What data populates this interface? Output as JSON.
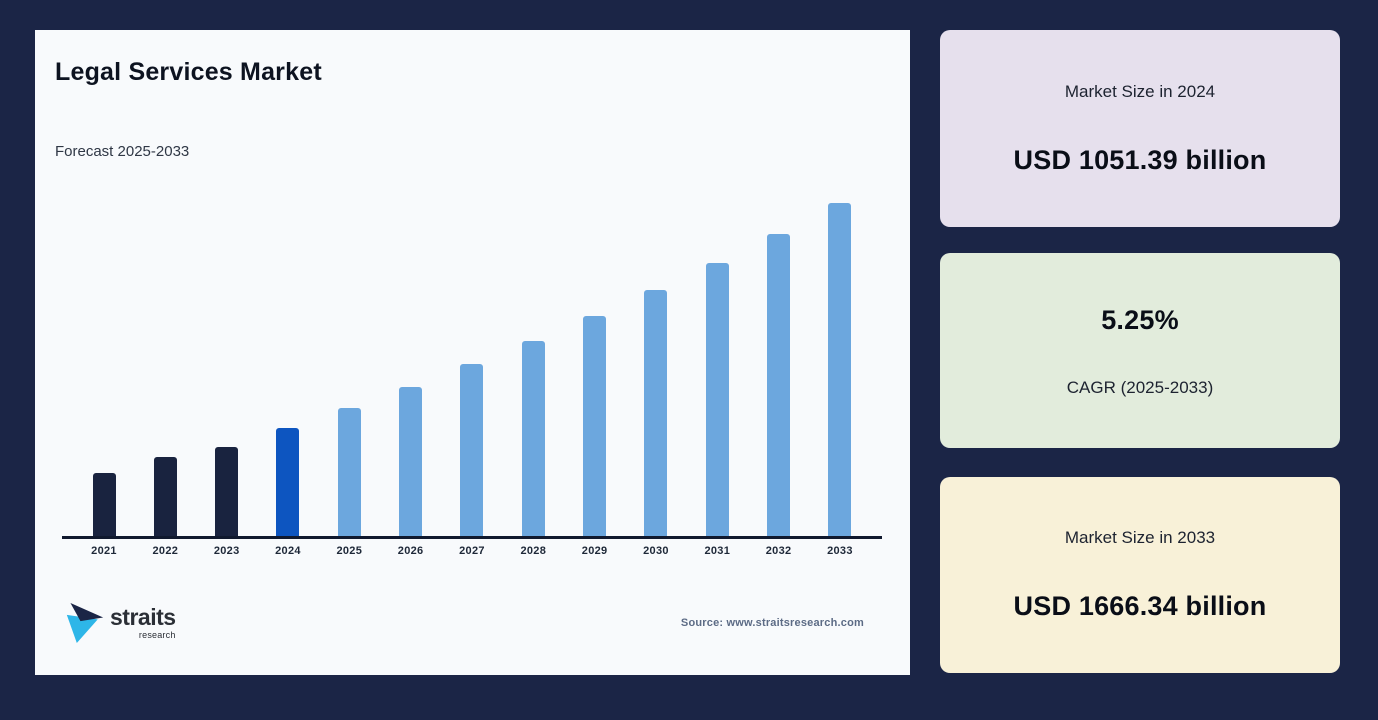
{
  "canvas": {
    "background": "#1b2546",
    "panel_background": "#f8fafc"
  },
  "header": {
    "title": "Legal Services Market",
    "subtitle": "Forecast 2025-2033"
  },
  "footer": {
    "logo_text": "straits",
    "logo_subtext": "research",
    "logo_colors": {
      "dark": "#1b2546",
      "cyan": "#2eb6e8"
    },
    "source": "Source: www.straitsresearch.com"
  },
  "chart_data": {
    "type": "bar",
    "title": "Legal Services Market",
    "subtitle": "Forecast 2025-2033",
    "unit": "USD billion",
    "categories": [
      "2021",
      "2022",
      "2023",
      "2024",
      "2025",
      "2026",
      "2027",
      "2028",
      "2029",
      "2030",
      "2031",
      "2032",
      "2033"
    ],
    "values": [
      930,
      973,
      1000,
      1051.39,
      1106.59,
      1164.69,
      1225.83,
      1290.19,
      1357.92,
      1429.21,
      1504.25,
      1583.22,
      1666.34
    ],
    "segments": [
      "historical",
      "historical",
      "historical",
      "current",
      "forecast",
      "forecast",
      "forecast",
      "forecast",
      "forecast",
      "forecast",
      "forecast",
      "forecast",
      "forecast"
    ],
    "colors": {
      "historical": "#19233f",
      "current": "#0d55c0",
      "forecast": "#6ca7de"
    },
    "ylim": [
      757,
      1700
    ],
    "grid": false,
    "legend": false,
    "axis_line_color": "#10192e",
    "xlabel": "",
    "ylabel": ""
  },
  "cards": [
    {
      "label": "Market Size in 2024",
      "value": "USD 1051.39 billion",
      "bg": "#e6e0ed"
    },
    {
      "label": "CAGR (2025-2033)",
      "value": "5.25%",
      "bg": "#e2ecdc"
    },
    {
      "label": "Market Size in 2033",
      "value": "USD 1666.34 billion",
      "bg": "#f8f1d8"
    }
  ]
}
